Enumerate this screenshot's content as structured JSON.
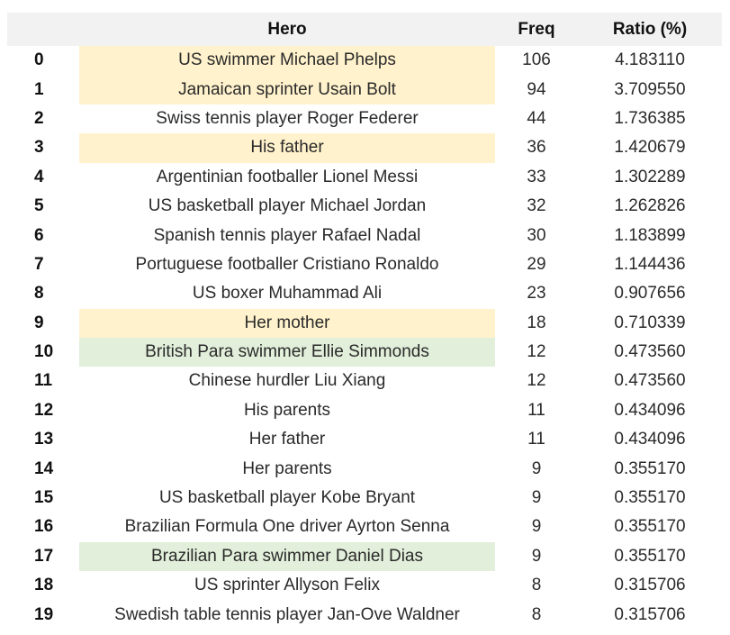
{
  "table": {
    "headers": {
      "index": "",
      "hero": "Hero",
      "freq": "Freq",
      "ratio": "Ratio (%)"
    },
    "highlight_colors": {
      "yellow": "#fff2cc",
      "green": "#e2efda"
    },
    "rows": [
      {
        "index": "0",
        "hero": "US swimmer Michael Phelps",
        "freq": "106",
        "ratio": "4.183110",
        "highlight": "yellow"
      },
      {
        "index": "1",
        "hero": "Jamaican sprinter Usain Bolt",
        "freq": "94",
        "ratio": "3.709550",
        "highlight": "yellow"
      },
      {
        "index": "2",
        "hero": "Swiss tennis player Roger Federer",
        "freq": "44",
        "ratio": "1.736385",
        "highlight": ""
      },
      {
        "index": "3",
        "hero": "His father",
        "freq": "36",
        "ratio": "1.420679",
        "highlight": "yellow"
      },
      {
        "index": "4",
        "hero": "Argentinian footballer Lionel Messi",
        "freq": "33",
        "ratio": "1.302289",
        "highlight": ""
      },
      {
        "index": "5",
        "hero": "US basketball player Michael Jordan",
        "freq": "32",
        "ratio": "1.262826",
        "highlight": ""
      },
      {
        "index": "6",
        "hero": "Spanish tennis player Rafael Nadal",
        "freq": "30",
        "ratio": "1.183899",
        "highlight": ""
      },
      {
        "index": "7",
        "hero": "Portuguese footballer Cristiano Ronaldo",
        "freq": "29",
        "ratio": "1.144436",
        "highlight": ""
      },
      {
        "index": "8",
        "hero": "US boxer Muhammad Ali",
        "freq": "23",
        "ratio": "0.907656",
        "highlight": ""
      },
      {
        "index": "9",
        "hero": "Her mother",
        "freq": "18",
        "ratio": "0.710339",
        "highlight": "yellow"
      },
      {
        "index": "10",
        "hero": "British Para swimmer Ellie Simmonds",
        "freq": "12",
        "ratio": "0.473560",
        "highlight": "green"
      },
      {
        "index": "11",
        "hero": "Chinese hurdler Liu Xiang",
        "freq": "12",
        "ratio": "0.473560",
        "highlight": ""
      },
      {
        "index": "12",
        "hero": "His parents",
        "freq": "11",
        "ratio": "0.434096",
        "highlight": ""
      },
      {
        "index": "13",
        "hero": "Her father",
        "freq": "11",
        "ratio": "0.434096",
        "highlight": ""
      },
      {
        "index": "14",
        "hero": "Her parents",
        "freq": "9",
        "ratio": "0.355170",
        "highlight": ""
      },
      {
        "index": "15",
        "hero": "US basketball player Kobe Bryant",
        "freq": "9",
        "ratio": "0.355170",
        "highlight": ""
      },
      {
        "index": "16",
        "hero": "Brazilian Formula One driver Ayrton Senna",
        "freq": "9",
        "ratio": "0.355170",
        "highlight": ""
      },
      {
        "index": "17",
        "hero": "Brazilian Para swimmer Daniel Dias",
        "freq": "9",
        "ratio": "0.355170",
        "highlight": "green"
      },
      {
        "index": "18",
        "hero": "US sprinter Allyson Felix",
        "freq": "8",
        "ratio": "0.315706",
        "highlight": ""
      },
      {
        "index": "19",
        "hero": "Swedish table tennis player Jan-Ove Waldner",
        "freq": "8",
        "ratio": "0.315706",
        "highlight": ""
      }
    ]
  }
}
